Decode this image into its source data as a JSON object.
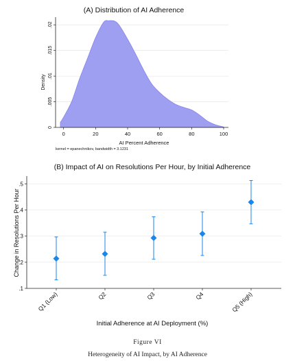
{
  "chart_data": [
    {
      "type": "area",
      "title": "(A)  Distribution of AI Adherence",
      "xlabel": "AI Percent Adherence",
      "ylabel": "Density",
      "note": "kernel = epanechnikov, bandwidth = 3.1231",
      "xlim": [
        -5,
        103
      ],
      "ylim": [
        0,
        0.0215
      ],
      "xticks": [
        "0",
        "20",
        "40",
        "60",
        "80",
        "100"
      ],
      "yticks": [
        "0",
        ".005",
        ".01",
        ".015",
        ".02"
      ],
      "color": "#9f9ff2",
      "x": [
        -2,
        0,
        5,
        10,
        15,
        20,
        25,
        28,
        32,
        35,
        40,
        45,
        50,
        55,
        60,
        65,
        70,
        75,
        80,
        85,
        90,
        95,
        100
      ],
      "y": [
        0.001,
        0.002,
        0.005,
        0.0095,
        0.0135,
        0.0175,
        0.0205,
        0.0208,
        0.0207,
        0.0198,
        0.0172,
        0.0143,
        0.0112,
        0.0085,
        0.0068,
        0.0055,
        0.0045,
        0.0039,
        0.0034,
        0.0024,
        0.0012,
        0.0005,
        0.0001
      ],
      "grid": true
    },
    {
      "type": "scatter",
      "title": "(B)  Impact of AI on Resolutions Per Hour, by Initial Adherence",
      "xlabel": "Initial Adherence at AI Deployment (%)",
      "ylabel": "Change in Resolutions Per Hour",
      "categories": [
        "Q1 (Low)",
        "Q2",
        "Q3",
        "Q4",
        "Q5 (High)"
      ],
      "values": [
        0.214,
        0.232,
        0.293,
        0.309,
        0.43
      ],
      "ci_low": [
        0.133,
        0.15,
        0.212,
        0.226,
        0.347
      ],
      "ci_high": [
        0.297,
        0.315,
        0.374,
        0.393,
        0.513
      ],
      "ylim": [
        0.1,
        0.53
      ],
      "yticks": [
        ".1",
        ".2",
        ".3",
        ".4",
        ".5"
      ],
      "color": "#1a86e8",
      "grid": true
    }
  ],
  "caption": {
    "figure_label": "Figure VI",
    "text": "Heterogeneity of AI Impact, by AI Adherence"
  }
}
